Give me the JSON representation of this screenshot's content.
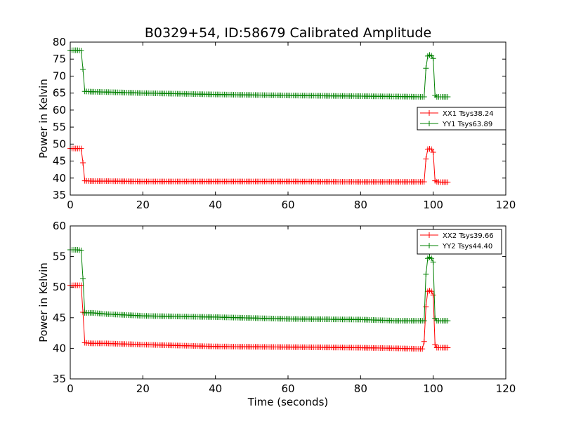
{
  "title": "B0329+54, ID:58679 Calibrated Amplitude",
  "chart_data": [
    {
      "type": "line",
      "title": "B0329+54, ID:58679 Calibrated Amplitude",
      "xlabel": "",
      "ylabel": "Power in Kelvin",
      "xlim": [
        0,
        120
      ],
      "ylim": [
        35,
        80
      ],
      "x_ticks": [
        "0",
        "20",
        "40",
        "60",
        "80",
        "100",
        "120"
      ],
      "y_ticks": [
        "35",
        "40",
        "45",
        "50",
        "55",
        "60",
        "65",
        "70",
        "75",
        "80"
      ],
      "grid": false,
      "legend_position": "center-right",
      "series": [
        {
          "name": "XX1 Tsys38.24",
          "color": "#ff0000",
          "marker": "plus",
          "x": [
            0,
            1,
            2,
            3,
            3.5,
            4,
            6,
            10,
            20,
            40,
            60,
            80,
            90,
            97,
            97.5,
            98,
            98.5,
            99,
            99.5,
            100,
            100.5,
            101,
            102,
            103,
            104
          ],
          "y": [
            48.7,
            48.7,
            48.7,
            48.7,
            44.5,
            39.2,
            39.1,
            39.1,
            39.0,
            39.0,
            39.0,
            38.9,
            38.9,
            38.9,
            38.9,
            45.6,
            48.5,
            48.6,
            48.5,
            47.6,
            39.2,
            38.9,
            38.8,
            38.8,
            38.8
          ]
        },
        {
          "name": "YY1 Tsys63.89",
          "color": "#008000",
          "marker": "plus",
          "x": [
            0,
            1,
            2,
            3,
            3.5,
            4,
            6,
            10,
            20,
            40,
            60,
            80,
            90,
            97,
            97.5,
            98,
            98.5,
            99,
            99.5,
            100,
            100.5,
            101,
            102,
            103,
            104
          ],
          "y": [
            77.6,
            77.6,
            77.6,
            77.5,
            72.0,
            65.5,
            65.4,
            65.3,
            65.0,
            64.6,
            64.3,
            64.1,
            64.0,
            63.9,
            63.9,
            72.3,
            75.9,
            76.2,
            76.0,
            75.2,
            64.3,
            63.9,
            63.9,
            63.9,
            63.9
          ]
        }
      ]
    },
    {
      "type": "line",
      "title": "",
      "xlabel": "Time (seconds)",
      "ylabel": "Power in Kelvin",
      "xlim": [
        0,
        120
      ],
      "ylim": [
        35,
        60
      ],
      "x_ticks": [
        "0",
        "20",
        "40",
        "60",
        "80",
        "100",
        "120"
      ],
      "y_ticks": [
        "35",
        "40",
        "45",
        "50",
        "55",
        "60"
      ],
      "grid": false,
      "legend_position": "top-right",
      "series": [
        {
          "name": "XX2 Tsys39.66",
          "color": "#ff0000",
          "marker": "plus",
          "x": [
            0,
            1,
            2,
            3,
            3.5,
            4,
            6,
            10,
            20,
            40,
            60,
            80,
            90,
            97,
            97.5,
            98,
            98.5,
            99,
            99.5,
            100,
            100.5,
            101,
            102,
            103,
            104
          ],
          "y": [
            50.3,
            50.3,
            50.3,
            50.3,
            45.9,
            40.9,
            40.8,
            40.8,
            40.6,
            40.3,
            40.2,
            40.1,
            40.0,
            39.9,
            41.1,
            46.8,
            49.3,
            49.4,
            49.3,
            48.7,
            40.6,
            40.1,
            40.1,
            40.1,
            40.1
          ]
        },
        {
          "name": "YY2 Tsys44.40",
          "color": "#008000",
          "marker": "plus",
          "x": [
            0,
            1,
            2,
            3,
            3.5,
            4,
            6,
            10,
            20,
            40,
            60,
            80,
            90,
            97,
            97.5,
            98,
            98.5,
            99,
            99.5,
            100,
            100.5,
            101,
            102,
            103,
            104
          ],
          "y": [
            56.1,
            56.1,
            56.1,
            56.0,
            51.4,
            45.8,
            45.8,
            45.6,
            45.3,
            45.1,
            44.8,
            44.7,
            44.5,
            44.5,
            44.5,
            52.1,
            54.7,
            54.9,
            54.7,
            54.1,
            44.9,
            44.5,
            44.5,
            44.5,
            44.5
          ]
        }
      ]
    }
  ]
}
